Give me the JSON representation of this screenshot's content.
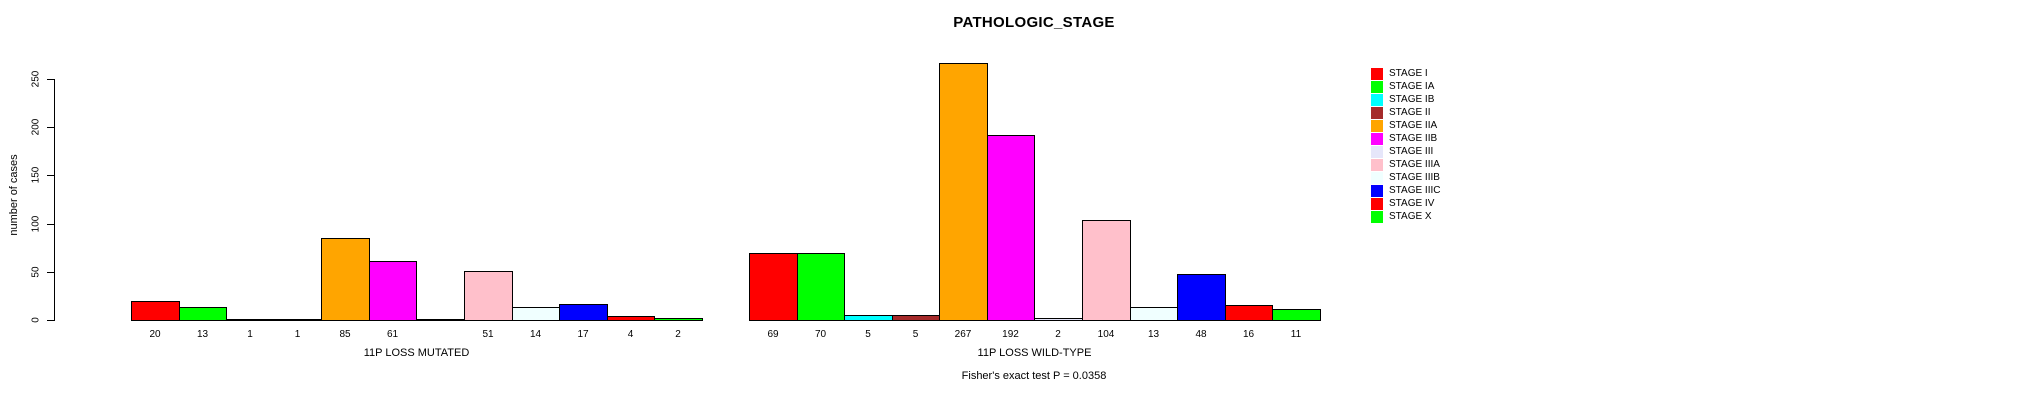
{
  "title": "PATHOLOGIC_STAGE",
  "footer": "Fisher's exact test P = 0.0358",
  "y_axis": {
    "label": "number of cases",
    "ticks": [
      "0",
      "50",
      "100",
      "150",
      "200",
      "250"
    ]
  },
  "legend": {
    "entries": [
      {
        "label": "STAGE I",
        "color": "#FF0000"
      },
      {
        "label": "STAGE IA",
        "color": "#00FF00"
      },
      {
        "label": "STAGE IB",
        "color": "#00FFFF"
      },
      {
        "label": "STAGE II",
        "color": "#A52A2A"
      },
      {
        "label": "STAGE IIA",
        "color": "#FFA500"
      },
      {
        "label": "STAGE IIB",
        "color": "#FF00FF"
      },
      {
        "label": "STAGE III",
        "color": "#E6E6FA"
      },
      {
        "label": "STAGE IIIA",
        "color": "#FFC0CB"
      },
      {
        "label": "STAGE IIIB",
        "color": "#F0FFFF"
      },
      {
        "label": "STAGE IIIC",
        "color": "#0000FF"
      },
      {
        "label": "STAGE IV",
        "color": "#FF0000"
      },
      {
        "label": "STAGE X",
        "color": "#00FF00"
      }
    ]
  },
  "chart_data": {
    "type": "bar",
    "title": "PATHOLOGIC_STAGE",
    "xlabel": "",
    "ylabel": "number of cases",
    "ylim": [
      0,
      270
    ],
    "yticks": [
      0,
      50,
      100,
      150,
      200,
      250
    ],
    "grid": false,
    "legend_position": "right",
    "categories": [
      "STAGE I",
      "STAGE IA",
      "STAGE IB",
      "STAGE II",
      "STAGE IIA",
      "STAGE IIB",
      "STAGE III",
      "STAGE IIIA",
      "STAGE IIIB",
      "STAGE IIIC",
      "STAGE IV",
      "STAGE X"
    ],
    "colors": [
      "#FF0000",
      "#00FF00",
      "#00FFFF",
      "#A52A2A",
      "#FFA500",
      "#FF00FF",
      "#E6E6FA",
      "#FFC0CB",
      "#F0FFFF",
      "#0000FF",
      "#FF0000",
      "#00FF00"
    ],
    "series": [
      {
        "name": "11P LOSS MUTATED",
        "values": [
          20,
          13,
          1,
          1,
          85,
          61,
          0,
          51,
          14,
          17,
          4,
          2
        ],
        "bar_labels": [
          "20",
          "13",
          "1",
          "1",
          "85",
          "61",
          "",
          "51",
          "14",
          "17",
          "4",
          "2"
        ]
      },
      {
        "name": "11P LOSS WILD-TYPE",
        "values": [
          69,
          70,
          5,
          5,
          267,
          192,
          2,
          104,
          13,
          48,
          16,
          11
        ],
        "bar_labels": [
          "69",
          "70",
          "5",
          "5",
          "267",
          "192",
          "2",
          "104",
          "13",
          "48",
          "16",
          "11"
        ]
      }
    ],
    "annotation": "Fisher's exact test P = 0.0358"
  }
}
